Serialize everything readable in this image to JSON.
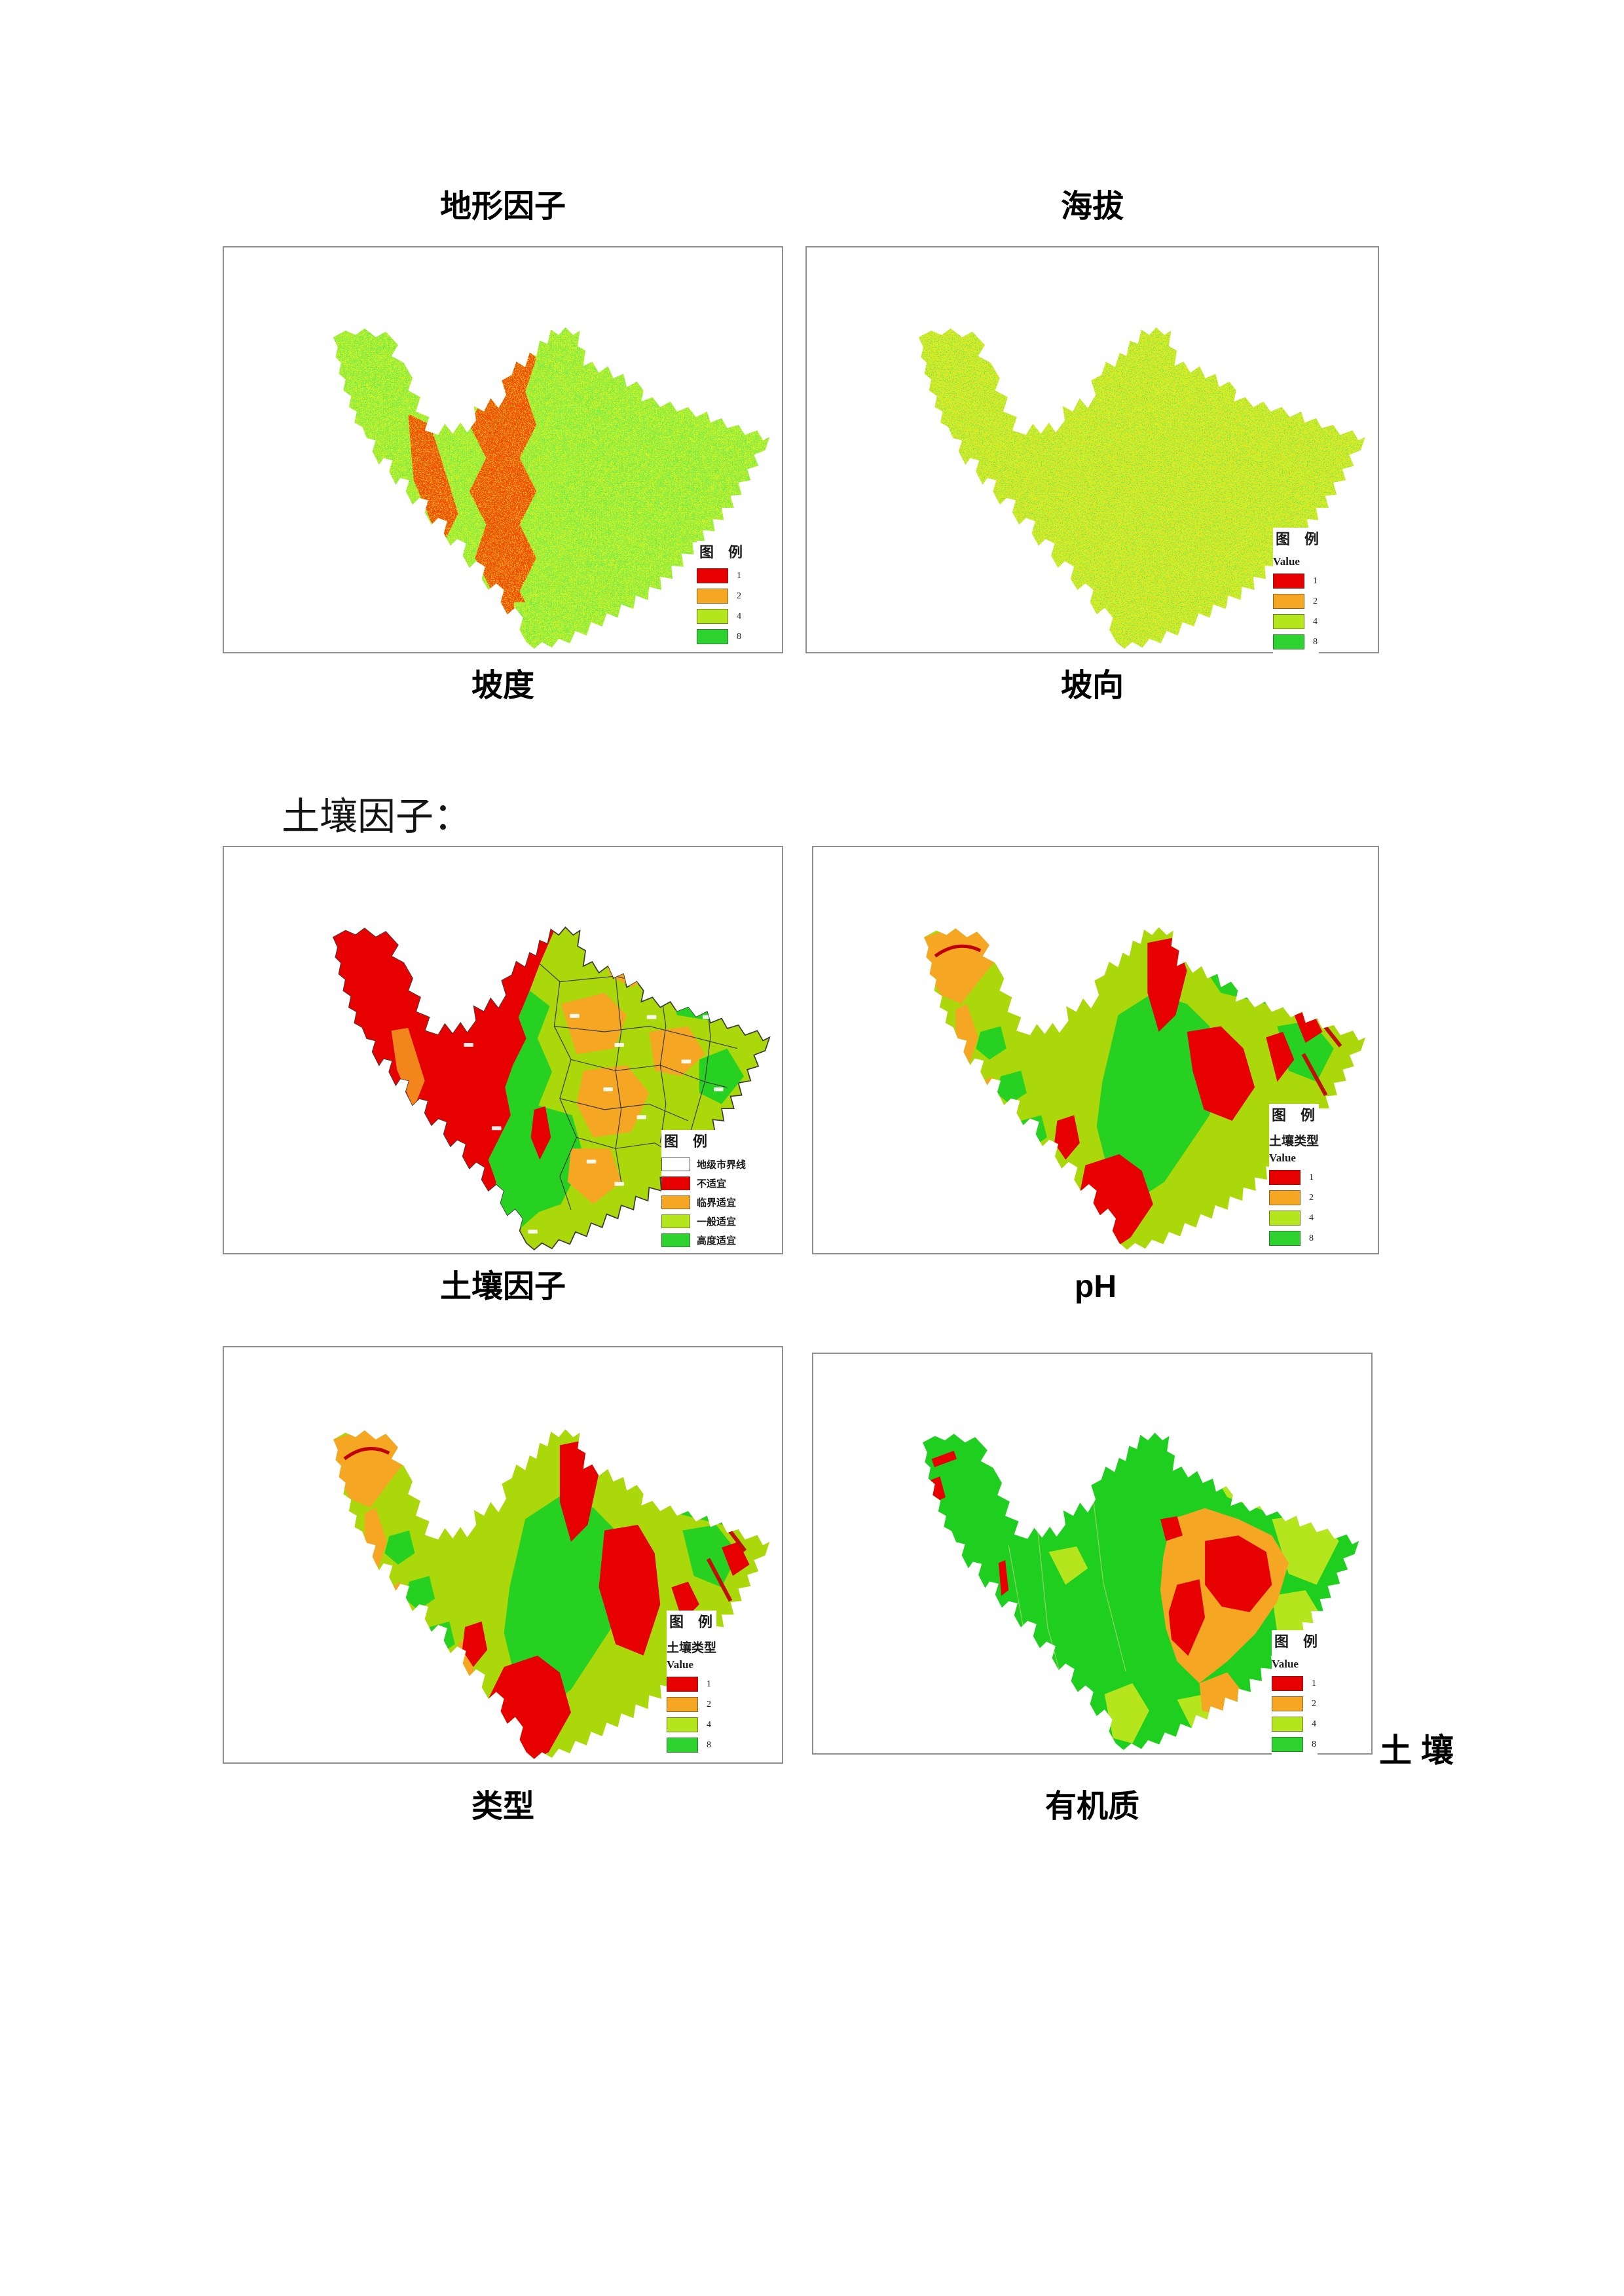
{
  "titles": {
    "terrain": "地形因子",
    "elevation": "海拔"
  },
  "captions": {
    "slope": "坡度",
    "aspect": "坡向",
    "soil_factor": "土壤因子",
    "ph": "pH",
    "type": "类型",
    "organic": "有机质"
  },
  "headings": {
    "soil_section": "土壤因子："
  },
  "trailing_label": "土 壤",
  "legend_colors": {
    "red": "#e60000",
    "orange": "#f5a623",
    "yellowgreen": "#b5e61d",
    "green": "#2fd32f",
    "white": "#ffffff"
  },
  "legends": {
    "slope": {
      "title": "图　例",
      "items": [
        {
          "color": "red",
          "label": "1"
        },
        {
          "color": "orange",
          "label": "2"
        },
        {
          "color": "yellowgreen",
          "label": "4"
        },
        {
          "color": "green",
          "label": "8"
        }
      ]
    },
    "aspect": {
      "title": "图　例",
      "value_label": "Value",
      "items": [
        {
          "color": "red",
          "label": "1"
        },
        {
          "color": "orange",
          "label": "2"
        },
        {
          "color": "yellowgreen",
          "label": "4"
        },
        {
          "color": "green",
          "label": "8"
        }
      ]
    },
    "soil_factor": {
      "title": "图　例",
      "items": [
        {
          "color": "white",
          "label": "地级市界线"
        },
        {
          "color": "red",
          "label": "不适宜"
        },
        {
          "color": "orange",
          "label": "临界适宜"
        },
        {
          "color": "yellowgreen",
          "label": "一般适宜"
        },
        {
          "color": "green",
          "label": "高度适宜"
        }
      ]
    },
    "ph": {
      "title": "图　例",
      "subtitle": "土壤类型",
      "value_label": "Value",
      "items": [
        {
          "color": "red",
          "label": "1"
        },
        {
          "color": "orange",
          "label": "2"
        },
        {
          "color": "yellowgreen",
          "label": "4"
        },
        {
          "color": "green",
          "label": "8"
        }
      ]
    },
    "type": {
      "title": "图　例",
      "subtitle": "土壤类型",
      "value_label": "Value",
      "items": [
        {
          "color": "red",
          "label": "1"
        },
        {
          "color": "orange",
          "label": "2"
        },
        {
          "color": "yellowgreen",
          "label": "4"
        },
        {
          "color": "green",
          "label": "8"
        }
      ]
    },
    "organic": {
      "title": "图　例",
      "value_label": "Value",
      "items": [
        {
          "color": "red",
          "label": "1"
        },
        {
          "color": "orange",
          "label": "2"
        },
        {
          "color": "yellowgreen",
          "label": "4"
        },
        {
          "color": "green",
          "label": "8"
        }
      ]
    }
  }
}
